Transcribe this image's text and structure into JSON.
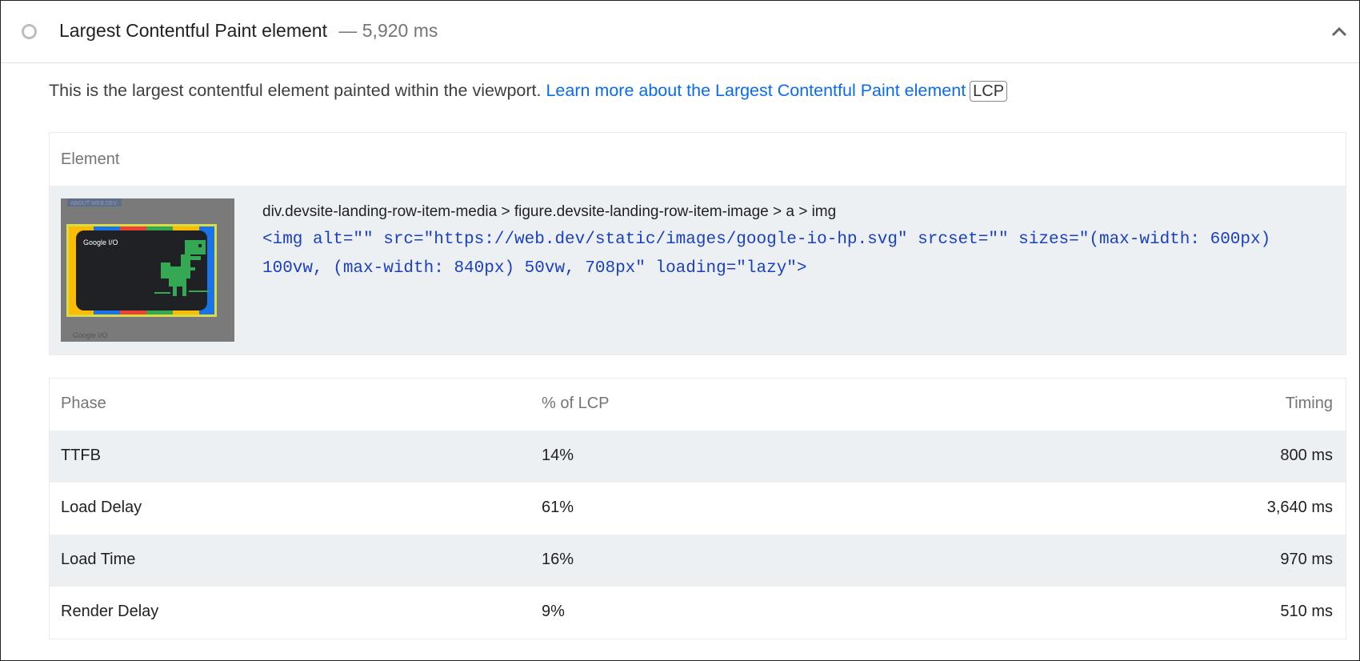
{
  "audit": {
    "title": "Largest Contentful Paint element",
    "separator": "—",
    "value": "5,920 ms",
    "status_icon": "circle-outline-icon",
    "expand_icon": "chevron-up-icon"
  },
  "description": {
    "text": "This is the largest contentful element painted within the viewport.",
    "link": "Learn more about the Largest Contentful Paint element",
    "badge": "LCP"
  },
  "element_table": {
    "header": "Element",
    "selector": "div.devsite-landing-row-item-media > figure.devsite-landing-row-item-image > a > img",
    "snippet_line1": "<img alt=\"\" src=\"https://web.dev/static/images/google-io-hp.svg\" srcset=\"\" sizes=\"(max-width: 600px)",
    "snippet_line2": "100vw, (max-width: 840px) 50vw, 708px\" loading=\"lazy\">",
    "thumbnail": {
      "top_label": "ABOUT WEB.DEV",
      "brand": "Google I/O",
      "bottom_label": "Google I/O"
    }
  },
  "phase_table": {
    "headers": [
      "Phase",
      "% of LCP",
      "Timing"
    ],
    "rows": [
      {
        "phase": "TTFB",
        "percent": "14%",
        "timing": "800 ms"
      },
      {
        "phase": "Load Delay",
        "percent": "61%",
        "timing": "3,640 ms"
      },
      {
        "phase": "Load Time",
        "percent": "16%",
        "timing": "970 ms"
      },
      {
        "phase": "Render Delay",
        "percent": "9%",
        "timing": "510 ms"
      }
    ]
  },
  "colors": {
    "link": "#0b6bf0",
    "code": "#1a3fc0",
    "row_alt": "#edf0f3"
  }
}
